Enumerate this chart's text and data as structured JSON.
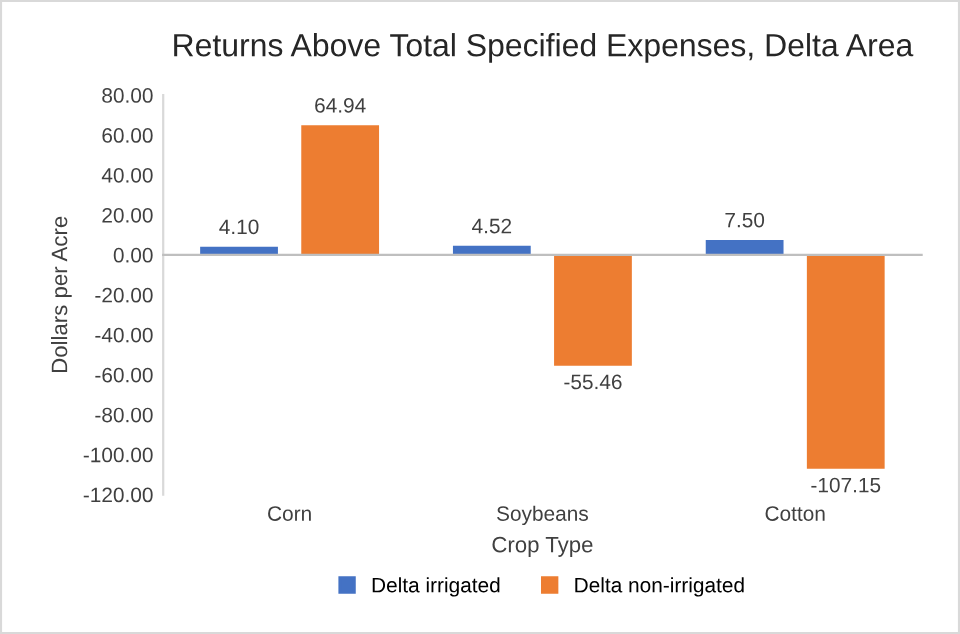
{
  "chart_data": {
    "type": "bar",
    "title": "Returns Above Total Specified Expenses, Delta Area",
    "xlabel": "Crop Type",
    "ylabel": "Dollars per Acre",
    "categories": [
      "Corn",
      "Soybeans",
      "Cotton"
    ],
    "series": [
      {
        "name": "Delta irrigated",
        "color": "#4472c4",
        "values": [
          4.1,
          4.52,
          7.5
        ],
        "value_labels": [
          "4.10",
          "4.52",
          "7.50"
        ]
      },
      {
        "name": "Delta non-irrigated",
        "color": "#ed7d31",
        "values": [
          64.94,
          -55.46,
          -107.15
        ],
        "value_labels": [
          "64.94",
          "-55.46",
          "-107.15"
        ]
      }
    ],
    "ylim": [
      -120,
      80
    ],
    "yticks": [
      {
        "value": 80,
        "label": "80.00"
      },
      {
        "value": 60,
        "label": "60.00"
      },
      {
        "value": 40,
        "label": "40.00"
      },
      {
        "value": 20,
        "label": "20.00"
      },
      {
        "value": 0,
        "label": "0.00"
      },
      {
        "value": -20,
        "label": "-20.00"
      },
      {
        "value": -40,
        "label": "-40.00"
      },
      {
        "value": -60,
        "label": "-60.00"
      },
      {
        "value": -80,
        "label": "-80.00"
      },
      {
        "value": -100,
        "label": "-100.00"
      },
      {
        "value": -120,
        "label": "-120.00"
      }
    ],
    "legend": "bottom"
  }
}
